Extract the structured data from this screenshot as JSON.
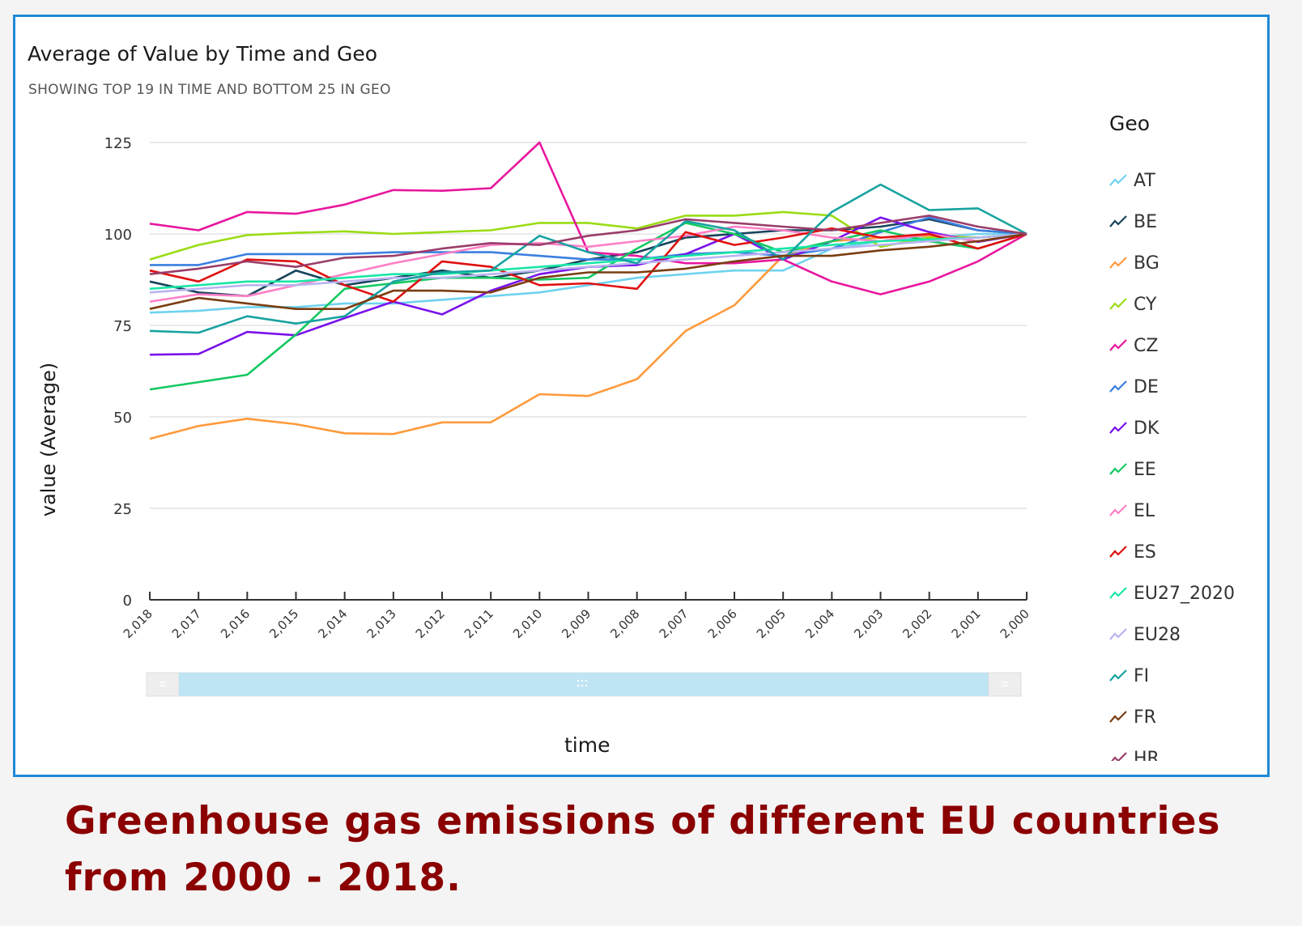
{
  "header": {
    "title": "Average of Value by Time and Geo",
    "subtitle": "SHOWING TOP 19 IN TIME AND BOTTOM 25 IN GEO"
  },
  "legend": {
    "title": "Geo",
    "items": [
      "AT",
      "BE",
      "BG",
      "CY",
      "CZ",
      "DE",
      "DK",
      "EE",
      "EL",
      "ES",
      "EU27_2020",
      "EU28",
      "FI",
      "FR",
      "HR"
    ]
  },
  "caption": "Greenhouse gas emissions of different EU countries from 2000 - 2018.",
  "chart_data": {
    "type": "line",
    "title": "Average of Value by Time and Geo",
    "subtitle": "SHOWING TOP 19 IN TIME AND BOTTOM 25 IN GEO",
    "xlabel": "time",
    "ylabel": "value (Average)",
    "x": [
      "2,018",
      "2,017",
      "2,016",
      "2,015",
      "2,014",
      "2,013",
      "2,012",
      "2,011",
      "2,010",
      "2,009",
      "2,008",
      "2,007",
      "2,006",
      "2,005",
      "2,004",
      "2,003",
      "2,002",
      "2,001",
      "2,000"
    ],
    "ylim": [
      0,
      125
    ],
    "yticks": [
      0,
      25,
      50,
      75,
      100,
      125
    ],
    "grid": true,
    "legend_position": "right",
    "series": [
      {
        "name": "AT",
        "color": "#6fd3f0",
        "values": [
          78.5,
          79,
          80,
          80,
          81,
          81,
          82,
          83,
          84,
          86,
          88,
          89,
          90,
          90,
          96,
          98,
          99,
          100,
          100
        ]
      },
      {
        "name": "BE",
        "color": "#17445c",
        "values": [
          87,
          84,
          83,
          90,
          86,
          88,
          90,
          88,
          90,
          93,
          95,
          99,
          100,
          101,
          101,
          102,
          104,
          101,
          100
        ]
      },
      {
        "name": "BG",
        "color": "#ff9a3c",
        "values": [
          44,
          47.5,
          49.5,
          48,
          45.5,
          45.3,
          48.5,
          48.5,
          56.2,
          55.7,
          60.3,
          73.5,
          80.5,
          94,
          98,
          99,
          99.5,
          99,
          100
        ]
      },
      {
        "name": "CY",
        "color": "#9adc14",
        "values": [
          93,
          97,
          99.7,
          100.3,
          100.7,
          100,
          100.5,
          101,
          103,
          103,
          101.5,
          105,
          105,
          106,
          105,
          96.5,
          99,
          99,
          100
        ]
      },
      {
        "name": "CZ",
        "color": "#e8179e",
        "values": [
          102.8,
          101,
          106,
          105.5,
          108,
          112,
          111.8,
          112.5,
          125,
          95,
          94,
          92,
          92,
          93,
          87,
          83.5,
          87,
          92.5,
          100
        ]
      },
      {
        "name": "DE",
        "color": "#3a7fe0",
        "values": [
          91.5,
          91.5,
          94.5,
          94.5,
          94.5,
          95,
          95,
          95,
          94,
          93,
          93,
          94.5,
          95,
          94,
          96,
          100.5,
          104.5,
          101,
          100
        ]
      },
      {
        "name": "DK",
        "color": "#7a12ea",
        "values": [
          67,
          67.2,
          73.2,
          72.3,
          77,
          81.5,
          78,
          84.5,
          89,
          91,
          91.5,
          94.5,
          100,
          93,
          98,
          104.5,
          100.5,
          97.8,
          100
        ]
      },
      {
        "name": "EE",
        "color": "#14c860",
        "values": [
          57.5,
          59.5,
          61.5,
          72.5,
          85,
          86.5,
          88,
          88,
          87.5,
          88,
          96,
          103,
          100,
          95,
          98,
          101,
          98,
          96,
          100
        ]
      },
      {
        "name": "EL",
        "color": "#ff80c6",
        "values": [
          81.5,
          83.5,
          83,
          86,
          89,
          92,
          94.5,
          97,
          97.5,
          96.5,
          98,
          99.5,
          102,
          101,
          99,
          98,
          100,
          98,
          100
        ]
      },
      {
        "name": "ES",
        "color": "#e01010",
        "values": [
          90,
          87,
          93,
          92.5,
          86,
          81.5,
          92.5,
          91,
          86,
          86.5,
          85,
          100.5,
          97,
          99,
          101.5,
          99,
          100,
          96,
          100
        ]
      },
      {
        "name": "EU27_2020",
        "color": "#1ae6a8",
        "values": [
          85,
          86,
          87,
          87,
          88,
          89,
          89,
          90,
          91,
          92,
          93,
          94,
          95,
          96,
          97,
          98,
          98.5,
          99,
          100
        ]
      },
      {
        "name": "EU28",
        "color": "#b9b4f0",
        "values": [
          84,
          85,
          86,
          86,
          87,
          88,
          88,
          89,
          90,
          91,
          92,
          93,
          94,
          95,
          96,
          97,
          98,
          99,
          100
        ]
      },
      {
        "name": "FI",
        "color": "#17a3a1",
        "values": [
          73.5,
          73,
          77.5,
          75.5,
          77.5,
          87,
          89.5,
          90,
          99.5,
          95,
          92,
          103.5,
          101,
          93,
          106,
          113.5,
          106.5,
          107,
          100
        ]
      },
      {
        "name": "FR",
        "color": "#7a3d10",
        "values": [
          79.5,
          82.5,
          81,
          79.5,
          79.5,
          84.5,
          84.5,
          84,
          88,
          89.5,
          89.5,
          90.5,
          92.5,
          94,
          94,
          95.5,
          96.5,
          98,
          100
        ]
      },
      {
        "name": "HR",
        "color": "#9a3d6a",
        "values": [
          89,
          90.5,
          92.5,
          91,
          93.5,
          94,
          96,
          97.5,
          97,
          99.5,
          101,
          104,
          103,
          102,
          101,
          103,
          105,
          102,
          100
        ]
      }
    ]
  }
}
